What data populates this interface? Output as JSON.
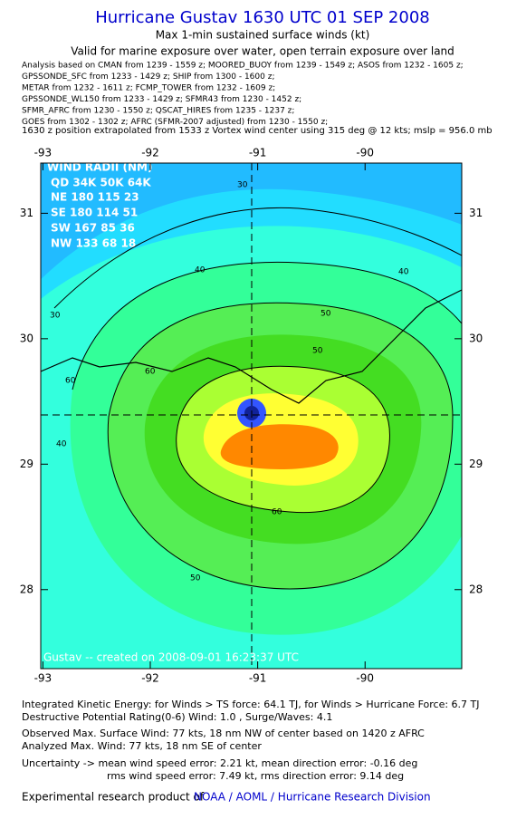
{
  "header": {
    "title": "Hurricane Gustav 1630 UTC 01 SEP 2008",
    "subtitle": "Max 1-min sustained surface winds (kt)",
    "valid": "Valid for marine exposure over water, open terrain exposure over land",
    "sources": [
      "Analysis based on  CMAN from 1239 - 1559 z;  MOORED_BUOY from 1239 - 1549 z;  ASOS from 1232 - 1605 z;",
      "GPSSONDE_SFC from 1233 - 1429 z;  SHIP from 1300 - 1600 z;",
      "METAR from 1232 - 1611 z;  FCMP_TOWER from 1232 - 1609 z;",
      "GPSSONDE_WL150 from 1233 - 1429 z;  SFMR43 from 1230 - 1452 z;",
      "SFMR_AFRC from 1230 - 1550 z;  QSCAT_HIRES from 1235 - 1237 z;",
      "GOES from 1302 - 1302 z;  AFRC (SFMR-2007 adjusted) from 1230 - 1550 z;"
    ],
    "position": "1630 z position extrapolated from 1533 z Vortex wind center using 315 deg @ 12 kts; mslp = 956.0 mb"
  },
  "map": {
    "xlim": [
      -93.02,
      -89.1
    ],
    "ylim": [
      27.37,
      31.4
    ],
    "xticks": [
      -93,
      -92,
      -91,
      -90
    ],
    "yticks": [
      31,
      30,
      29,
      28
    ],
    "contour_labels": [
      "30",
      "40",
      "50",
      "60",
      "30",
      "40",
      "50",
      "60",
      "40",
      "50",
      "60"
    ],
    "wind_radii": {
      "title": "WIND RADII (NM)",
      "rows": [
        "QD 34K 50K 64K",
        "NE 180 115  23",
        "SE 180 114  51",
        "SW 167  85  36",
        "NW 133  68  18"
      ]
    },
    "credit": "Gustav -- created on 2008-09-01 16:23:37 UTC"
  },
  "footer": {
    "lines": [
      "Integrated Kinetic Energy:  for Winds > TS force: 64.1 TJ,  for Winds > Hurricane Force: 6.7 TJ",
      "Destructive Potential Rating(0-6)   Wind: 1.0 , Surge/Waves: 4.1",
      "Observed Max. Surface Wind: 77 kts, 18 nm NW of center based on 1420 z AFRC",
      "Analyzed Max. Wind: 77 kts, 18 nm SE of center",
      "Uncertainty -> mean wind speed error: 2.21 kt,   mean direction error:  -0.16 deg",
      "rms wind speed error: 7.49 kt,   rms direction error: 9.14 deg"
    ],
    "product": "Experimental research product of",
    "org": "NOAA / AOML / Hurricane Research Division"
  }
}
